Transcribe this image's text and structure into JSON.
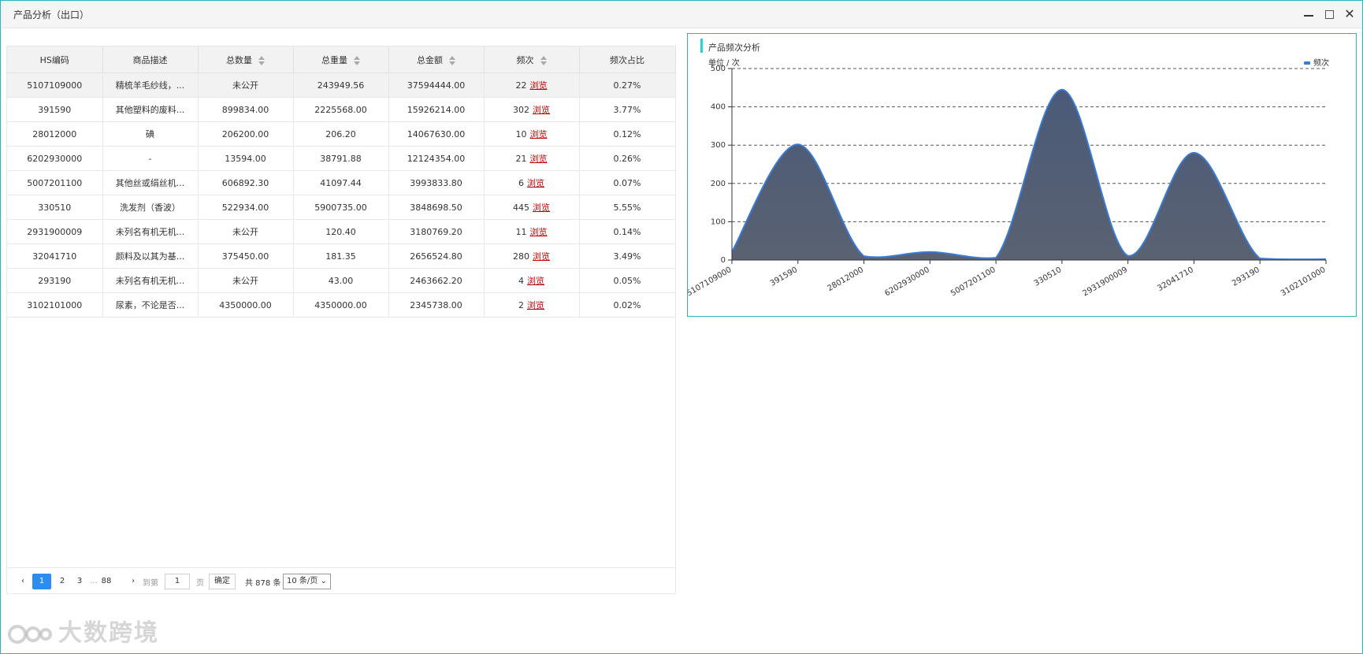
{
  "window": {
    "title": "产品分析（出口）"
  },
  "table": {
    "columns": [
      {
        "label": "HS编码",
        "sortable": false
      },
      {
        "label": "商品描述",
        "sortable": false
      },
      {
        "label": "总数量",
        "sortable": true
      },
      {
        "label": "总重量",
        "sortable": true
      },
      {
        "label": "总金额",
        "sortable": true
      },
      {
        "label": "频次",
        "sortable": true
      },
      {
        "label": "频次占比",
        "sortable": false
      }
    ],
    "browse_label": "浏览",
    "rows": [
      {
        "hs": "5107109000",
        "desc": "精梳羊毛纱线，...",
        "qty": "未公开",
        "weight": "243949.56",
        "amount": "37594444.00",
        "freq": "22",
        "share": "0.27%"
      },
      {
        "hs": "391590",
        "desc": "其他塑料的废料...",
        "qty": "899834.00",
        "weight": "2225568.00",
        "amount": "15926214.00",
        "freq": "302",
        "share": "3.77%"
      },
      {
        "hs": "28012000",
        "desc": "碘",
        "qty": "206200.00",
        "weight": "206.20",
        "amount": "14067630.00",
        "freq": "10",
        "share": "0.12%"
      },
      {
        "hs": "6202930000",
        "desc": "-",
        "qty": "13594.00",
        "weight": "38791.88",
        "amount": "12124354.00",
        "freq": "21",
        "share": "0.26%"
      },
      {
        "hs": "5007201100",
        "desc": "其他丝或绢丝机...",
        "qty": "606892.30",
        "weight": "41097.44",
        "amount": "3993833.80",
        "freq": "6",
        "share": "0.07%"
      },
      {
        "hs": "330510",
        "desc": "洗发剂（香波）",
        "qty": "522934.00",
        "weight": "5900735.00",
        "amount": "3848698.50",
        "freq": "445",
        "share": "5.55%"
      },
      {
        "hs": "2931900009",
        "desc": "未列名有机无机...",
        "qty": "未公开",
        "weight": "120.40",
        "amount": "3180769.20",
        "freq": "11",
        "share": "0.14%"
      },
      {
        "hs": "32041710",
        "desc": "颜料及以其为基...",
        "qty": "375450.00",
        "weight": "181.35",
        "amount": "2656524.80",
        "freq": "280",
        "share": "3.49%"
      },
      {
        "hs": "293190",
        "desc": "未列名有机无机...",
        "qty": "未公开",
        "weight": "43.00",
        "amount": "2463662.20",
        "freq": "4",
        "share": "0.05%"
      },
      {
        "hs": "3102101000",
        "desc": "尿素，不论是否...",
        "qty": "4350000.00",
        "weight": "4350000.00",
        "amount": "2345738.00",
        "freq": "2",
        "share": "0.02%"
      }
    ]
  },
  "pager": {
    "prev": "‹",
    "next": "›",
    "pages": [
      "1",
      "2",
      "3"
    ],
    "ellipsis": "...",
    "last_page": "88",
    "current": "1",
    "goto_label": "到第",
    "goto_value": "1",
    "page_unit": "页",
    "ok_label": "确定",
    "total_text": "共 878 条",
    "size_label": "10 条/页"
  },
  "chart_panel": {
    "title": "产品频次分析"
  },
  "chart_data": {
    "type": "area",
    "ylabel": "单位 / 次",
    "ylim": [
      0,
      500
    ],
    "yticks": [
      0,
      100,
      200,
      300,
      400,
      500
    ],
    "categories": [
      "5107109000",
      "391590",
      "28012000",
      "6202930000",
      "5007201100",
      "330510",
      "2931900009",
      "32041710",
      "293190",
      "3102101000"
    ],
    "series": [
      {
        "name": "频次",
        "values": [
          22,
          302,
          10,
          21,
          6,
          445,
          11,
          280,
          4,
          2
        ]
      }
    ],
    "legend_position": "top-right",
    "colors": {
      "line": "#3a7bd5",
      "fill_top": "#4a5a78",
      "fill_bottom": "#5a6272",
      "legend": "#3a7bd5"
    },
    "grid": true
  },
  "watermark": {
    "text": "大数跨境"
  }
}
